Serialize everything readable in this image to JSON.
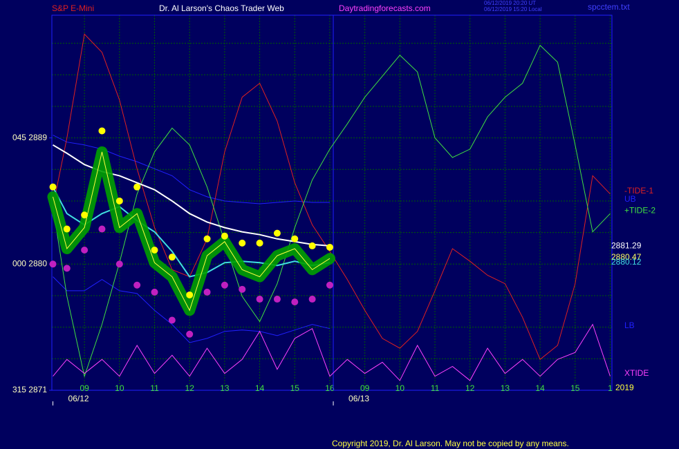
{
  "chart_data": {
    "type": "line",
    "title": "Dr. Al Larson's Chaos Trader Web",
    "symbol": "S&P E-Mini",
    "site": "Daytradingforecasts.com",
    "timestamps": [
      "06/12/2019 20:20 UT",
      "06/12/2019 15:20 Local"
    ],
    "file": "spcctem.txt",
    "copyright": "Copyright 2019, Dr. Al Larson. May not be copied by any means.",
    "year_label": "2019",
    "x": [
      -0.9,
      -0.5,
      0,
      0.5,
      1,
      1.5,
      2,
      2.5,
      3,
      3.5,
      4,
      4.5,
      5,
      5.5,
      6,
      6.5,
      7,
      7.5,
      8,
      8.5,
      9,
      9.5,
      10,
      10.5,
      11,
      11.5,
      12,
      12.5,
      13,
      13.5,
      14,
      14.5,
      15
    ],
    "xlim": [
      -0.93,
      15.05
    ],
    "xticks": [
      {
        "value": 0,
        "label": "09"
      },
      {
        "value": 1,
        "label": "10"
      },
      {
        "value": 2,
        "label": "11"
      },
      {
        "value": 3,
        "label": "12"
      },
      {
        "value": 4,
        "label": "13"
      },
      {
        "value": 5,
        "label": "14"
      },
      {
        "value": 6,
        "label": "15"
      },
      {
        "value": 7,
        "label": "16"
      },
      {
        "value": 8,
        "label": "09"
      },
      {
        "value": 9,
        "label": "10"
      },
      {
        "value": 10,
        "label": "11"
      },
      {
        "value": 11,
        "label": "12"
      },
      {
        "value": 12,
        "label": "13"
      },
      {
        "value": 13,
        "label": "14"
      },
      {
        "value": 14,
        "label": "15"
      },
      {
        "value": 15,
        "label": "1"
      }
    ],
    "dates": [
      {
        "value": -0.9,
        "label": "06/12"
      },
      {
        "value": 7.1,
        "label": "06/13"
      }
    ],
    "ylim": [
      2871,
      2897.75
    ],
    "yticks": [
      {
        "value": 2889,
        "label": "045  2889"
      },
      {
        "value": 2880,
        "label": "000  2880"
      },
      {
        "value": 2871,
        "label": "315  2871"
      }
    ],
    "ygrid": [
      2873.25,
      2875.5,
      2877.75,
      2880,
      2882.25,
      2884.5,
      2886.75,
      2889,
      2891.25,
      2893.5,
      2895.75
    ],
    "grid": true,
    "grid_color": "#006000",
    "last_values": [
      2881.29,
      2880.47,
      2880.12
    ],
    "last_colors": [
      "#ffffff",
      "#ffff60",
      "#40e0e0"
    ],
    "series": [
      {
        "name": "UB",
        "color": "#2020ff",
        "values": [
          2889.2,
          2888.7,
          2888.5,
          2888.2,
          2887.7,
          2887.3,
          2886.8,
          2886.3,
          2885.3,
          2884.8,
          2884.5,
          2884.4,
          2884.3,
          2884.4,
          2884.5,
          2884.4,
          2884.4,
          null,
          null,
          null,
          null,
          null,
          null,
          null,
          null,
          null,
          null,
          null,
          null,
          null,
          null,
          null,
          null
        ]
      },
      {
        "name": "LB",
        "color": "#2020ff",
        "values": [
          2879.1,
          2878.1,
          2878.1,
          2878.9,
          2878.1,
          2877.9,
          2876.7,
          2875.7,
          2874.4,
          2874.7,
          2875.2,
          2875.3,
          2875.2,
          2874.9,
          2875.3,
          2875.7,
          2875.4,
          null,
          null,
          null,
          null,
          null,
          null,
          null,
          null,
          null,
          null,
          null,
          null,
          null,
          null,
          null,
          null
        ]
      },
      {
        "name": "-TIDE-1",
        "color": "#e02020",
        "values": [
          2884.1,
          2889.0,
          2896.4,
          2895.1,
          2891.7,
          2886.8,
          2882.6,
          2879.6,
          2879.1,
          2881.8,
          2888.0,
          2891.9,
          2892.9,
          2890.2,
          2885.8,
          2882.8,
          2880.9,
          2878.9,
          2876.7,
          2874.7,
          2874.0,
          2875.2,
          2878.1,
          2881.1,
          2880.2,
          2879.2,
          2878.6,
          2876.2,
          2873.2,
          2874.2,
          2878.6,
          2886.3,
          2885.0
        ]
      },
      {
        "name": "+TIDE-2",
        "color": "#40e040",
        "values": [
          2884.1,
          2877.7,
          2872.0,
          2875.7,
          2880.1,
          2885.0,
          2888.0,
          2889.7,
          2888.5,
          2885.5,
          2881.6,
          2877.7,
          2875.9,
          2878.6,
          2882.6,
          2886.0,
          2888.2,
          2890.0,
          2891.9,
          2893.4,
          2894.9,
          2893.7,
          2889.0,
          2887.6,
          2888.2,
          2890.5,
          2891.9,
          2892.9,
          2895.6,
          2894.4,
          2888.5,
          2882.3,
          2883.6
        ]
      },
      {
        "name": "XTIDE",
        "color": "#ff40ff",
        "values": [
          2872.0,
          2873.2,
          2872.2,
          2873.2,
          2872.0,
          2874.2,
          2872.2,
          2873.5,
          2872.0,
          2874.0,
          2872.2,
          2873.2,
          2875.2,
          2872.5,
          2874.7,
          2875.4,
          2872.0,
          2873.2,
          2872.2,
          2873.0,
          2871.7,
          2874.2,
          2872.0,
          2872.7,
          2871.7,
          2874.0,
          2872.2,
          2873.2,
          2872.0,
          2873.2,
          2873.7,
          2875.7,
          2872.0
        ]
      },
      {
        "color": "#ffffff",
        "width": 2,
        "values": [
          2888.5,
          2887.9,
          2887.1,
          2886.6,
          2886.3,
          2885.8,
          2885.3,
          2884.5,
          2883.6,
          2883.0,
          2882.6,
          2882.3,
          2882.1,
          2881.8,
          2881.6,
          2881.4,
          2881.3,
          null,
          null,
          null,
          null,
          null,
          null,
          null,
          null,
          null,
          null,
          null,
          null,
          null,
          null,
          null,
          null
        ]
      },
      {
        "color": "#40e0e0",
        "width": 2,
        "values": [
          2885.5,
          2883.6,
          2882.8,
          2883.6,
          2884.1,
          2883.1,
          2882.3,
          2880.9,
          2879.1,
          2879.4,
          2880.1,
          2880.2,
          2880.1,
          2879.9,
          2880.2,
          2879.9,
          2880.1,
          null,
          null,
          null,
          null,
          null,
          null,
          null,
          null,
          null,
          null,
          null,
          null,
          null,
          null,
          null,
          null
        ]
      },
      {
        "color": "#ffff40",
        "glow": "#00a000",
        "values": [
          2884.8,
          2881.1,
          2882.6,
          2888.0,
          2882.6,
          2883.6,
          2880.1,
          2879.1,
          2876.7,
          2880.6,
          2881.6,
          2879.6,
          2879.1,
          2880.6,
          2881.1,
          2879.6,
          2880.4,
          null,
          null,
          null,
          null,
          null,
          null,
          null,
          null,
          null,
          null,
          null,
          null,
          null,
          null,
          null,
          null
        ]
      },
      {
        "color": "#ffff00",
        "marker": true,
        "values": [
          2885.5,
          2882.5,
          2883.5,
          2889.5,
          2884.5,
          2885.5,
          2881.0,
          2880.5,
          2877.8,
          2881.8,
          2882.0,
          2881.5,
          2881.5,
          2882.2,
          2881.8,
          2881.3,
          2881.2,
          null,
          null,
          null,
          null,
          null,
          null,
          null,
          null,
          null,
          null,
          null,
          null,
          null,
          null,
          null,
          null
        ]
      },
      {
        "color": "#c020c0",
        "marker": true,
        "values": [
          2880.0,
          2879.7,
          2881.0,
          2882.5,
          2880.0,
          2878.5,
          2878.0,
          2876.0,
          2875.0,
          2878.0,
          2878.5,
          2878.2,
          2877.5,
          2877.5,
          2877.3,
          2877.5,
          2878.5,
          null,
          null,
          null,
          null,
          null,
          null,
          null,
          null,
          null,
          null,
          null,
          null,
          null,
          null,
          null,
          null
        ]
      }
    ]
  }
}
